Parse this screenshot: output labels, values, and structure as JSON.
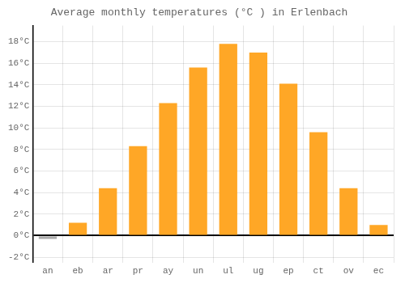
{
  "chart_data": {
    "type": "bar",
    "title": "Average monthly temperatures (°C ) in Erlenbach",
    "categories": [
      "an",
      "eb",
      "ar",
      "pr",
      "ay",
      "un",
      "ul",
      "ug",
      "ep",
      "ct",
      "ov",
      "ec"
    ],
    "values": [
      -0.3,
      1.2,
      4.4,
      8.3,
      12.3,
      15.6,
      17.8,
      17.0,
      14.1,
      9.6,
      4.4,
      1.0
    ],
    "colors": [
      "#AAAAAA",
      "#FFA726",
      "#FFA726",
      "#FFA726",
      "#FFA726",
      "#FFA726",
      "#FFA726",
      "#FFA726",
      "#FFA726",
      "#FFA726",
      "#FFA726",
      "#FFA726"
    ],
    "ylim": [
      -2.5,
      19.5
    ],
    "yticks": [
      {
        "value": -2,
        "label": "-2°C"
      },
      {
        "value": 0,
        "label": "0°C"
      },
      {
        "value": 2,
        "label": "2°C"
      },
      {
        "value": 4,
        "label": "4°C"
      },
      {
        "value": 6,
        "label": "6°C"
      },
      {
        "value": 8,
        "label": "8°C"
      },
      {
        "value": 10,
        "label": "10°C"
      },
      {
        "value": 12,
        "label": "12°C"
      },
      {
        "value": 14,
        "label": "14°C"
      },
      {
        "value": 16,
        "label": "16°C"
      },
      {
        "value": 18,
        "label": "18°C"
      }
    ],
    "grid": true
  }
}
